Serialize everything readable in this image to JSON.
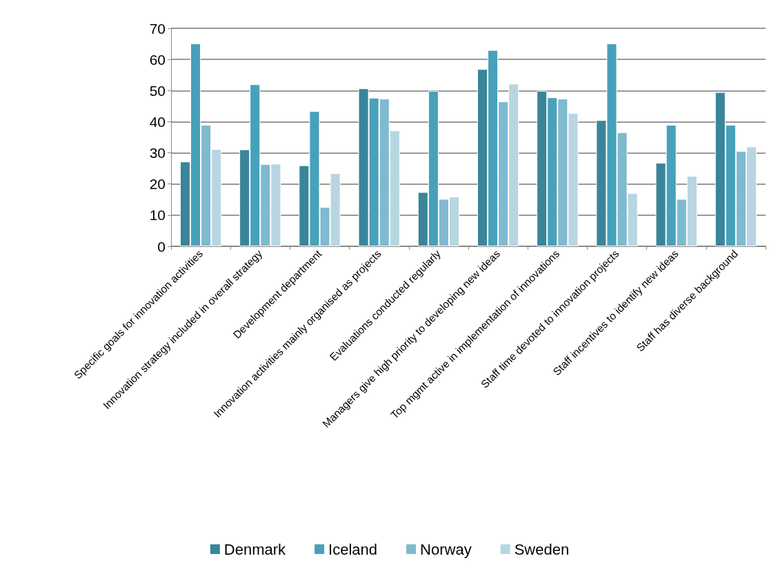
{
  "chart_data": {
    "type": "bar",
    "categories": [
      "Specific goals for innovation activities",
      "Innovation strategy included in overall strategy",
      "Development department",
      "Innovation activities mainly organised as projects",
      "Evaluations conducted regularly",
      "Managers give high priority to developing new ideas",
      "Top mgmt active in implementation of innovations",
      "Staff time devoted to innovation projects",
      "Staff incentives to identify new ideas",
      "Staff has diverse background"
    ],
    "series": [
      {
        "name": "Denmark",
        "color": "#3a8599",
        "values": [
          27.2,
          31.1,
          26.0,
          50.7,
          17.4,
          56.9,
          49.9,
          40.5,
          26.8,
          49.5
        ]
      },
      {
        "name": "Iceland",
        "color": "#47a1ba",
        "values": [
          65.1,
          52.0,
          43.4,
          47.7,
          49.9,
          63.0,
          47.8,
          65.1,
          39.0,
          39.0
        ]
      },
      {
        "name": "Norway",
        "color": "#7fbad0",
        "values": [
          39.0,
          26.4,
          12.6,
          47.4,
          15.2,
          46.5,
          47.4,
          36.6,
          15.2,
          30.6
        ]
      },
      {
        "name": "Sweden",
        "color": "#b7d6e1",
        "values": [
          31.2,
          26.5,
          23.5,
          37.2,
          16.0,
          52.2,
          42.8,
          17.1,
          22.6,
          32.0
        ]
      }
    ],
    "ylim": [
      0,
      70
    ],
    "yticks": [
      0,
      10,
      20,
      30,
      40,
      50,
      60,
      70
    ],
    "grid": "y",
    "legend": "bottom"
  }
}
